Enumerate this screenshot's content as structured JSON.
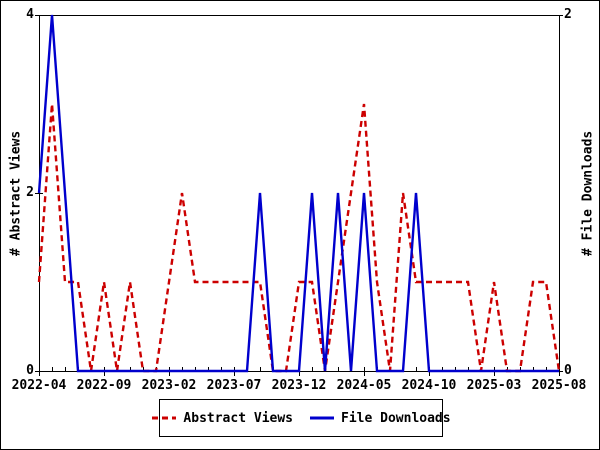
{
  "chart_data": {
    "type": "line",
    "x": [
      "2022-04",
      "2022-05",
      "2022-06",
      "2022-07",
      "2022-08",
      "2022-09",
      "2022-10",
      "2022-11",
      "2022-12",
      "2023-01",
      "2023-02",
      "2023-03",
      "2023-04",
      "2023-05",
      "2023-06",
      "2023-07",
      "2023-08",
      "2023-09",
      "2023-10",
      "2023-11",
      "2023-12",
      "2024-01",
      "2024-02",
      "2024-03",
      "2024-04",
      "2024-05",
      "2024-06",
      "2024-07",
      "2024-08",
      "2024-09",
      "2024-10",
      "2024-11",
      "2024-12",
      "2025-01",
      "2025-02",
      "2025-03",
      "2025-04",
      "2025-05",
      "2025-06",
      "2025-07",
      "2025-08"
    ],
    "x_tick_labels": [
      "2022-04",
      "2022-09",
      "2023-02",
      "2023-07",
      "2023-12",
      "2024-05",
      "2024-10",
      "2025-03",
      "2025-08"
    ],
    "x_major_tick_step": 5,
    "left_axis": {
      "label": "# Abstract Views",
      "range": [
        0,
        4
      ],
      "ticks": [
        0,
        2,
        4
      ]
    },
    "right_axis": {
      "label": "# File Downloads",
      "range": [
        0,
        2
      ],
      "ticks": [
        0,
        2
      ]
    },
    "series": [
      {
        "name": "Abstract Views",
        "axis": "left",
        "color": "#cc0000",
        "line_style": "dashed",
        "values": [
          1,
          3,
          1,
          1,
          0,
          1,
          0,
          1,
          0,
          0,
          1,
          2,
          1,
          1,
          1,
          1,
          1,
          1,
          0,
          0,
          1,
          1,
          0,
          1,
          2,
          3,
          1,
          0,
          2,
          1,
          1,
          1,
          1,
          1,
          0,
          1,
          0,
          0,
          1,
          1,
          0
        ]
      },
      {
        "name": "File Downloads",
        "axis": "right",
        "color": "#0000cd",
        "line_style": "solid",
        "values": [
          1,
          2,
          1,
          0,
          0,
          0,
          0,
          0,
          0,
          0,
          0,
          0,
          0,
          0,
          0,
          0,
          0,
          1,
          0,
          0,
          0,
          1,
          0,
          1,
          0,
          1,
          0,
          0,
          0,
          1,
          0,
          0,
          0,
          0,
          0,
          0,
          0,
          0,
          0,
          0,
          0
        ]
      }
    ],
    "grid": false,
    "legend_position": "bottom-center",
    "frame_color": "#000000"
  }
}
